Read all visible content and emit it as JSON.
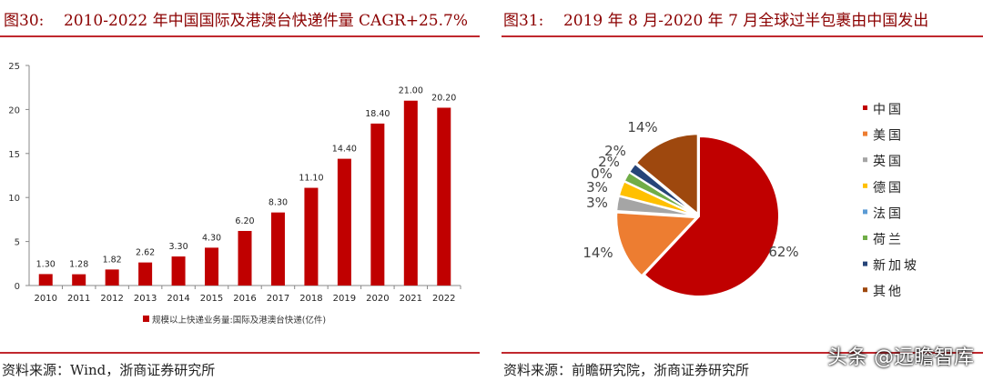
{
  "left": {
    "title": "图30:    2010-2022 年中国国际及港澳台快递件量 CAGR+25.7%",
    "source": "资料来源：Wind，浙商证券研究所"
  },
  "right": {
    "title": "图31:    2019 年 8 月-2020 年 7 月全球过半包裹由中国发出",
    "source": "资料来源：前瞻研究院，浙商证券研究所"
  },
  "watermark": "头条 @远瞻智库",
  "chart_data": [
    {
      "type": "bar",
      "categories": [
        "2010",
        "2011",
        "2012",
        "2013",
        "2014",
        "2015",
        "2016",
        "2017",
        "2018",
        "2019",
        "2020",
        "2021",
        "2022"
      ],
      "series": [
        {
          "name": "规模以上快递业务量:国际及港澳台快递(亿件)",
          "values": [
            1.3,
            1.28,
            1.82,
            2.62,
            3.3,
            4.3,
            6.2,
            8.3,
            11.1,
            14.4,
            18.4,
            21.0,
            20.2
          ]
        }
      ],
      "data_labels": [
        "1.30",
        "1.28",
        "1.82",
        "2.62",
        "3.30",
        "4.30",
        "6.20",
        "8.30",
        "11.10",
        "14.40",
        "18.40",
        "21.00",
        "20.20"
      ],
      "ylim": [
        0,
        25
      ],
      "yticks": [
        "0",
        "5",
        "10",
        "15",
        "20",
        "25"
      ],
      "color": "#c00000",
      "legend": "bottom",
      "grid": false
    },
    {
      "type": "pie",
      "labels": [
        "中国",
        "美国",
        "英国",
        "德国",
        "法国",
        "荷兰",
        "新加坡",
        "其他"
      ],
      "values": [
        62,
        14,
        3,
        3,
        0,
        2,
        2,
        14
      ],
      "data_labels": [
        "62%",
        "14%",
        "3%",
        "3%",
        "0%",
        "2%",
        "2%",
        "14%"
      ],
      "colors": [
        "#c00000",
        "#ed7d31",
        "#a5a5a5",
        "#ffc000",
        "#5b9bd5",
        "#70ad47",
        "#264478",
        "#9e480e"
      ],
      "legend": "right"
    }
  ]
}
